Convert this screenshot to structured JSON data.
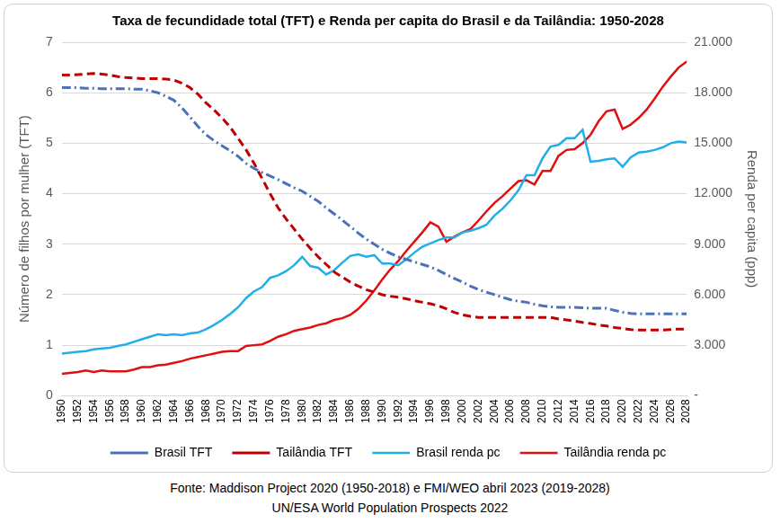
{
  "chart_data": {
    "type": "line",
    "title": "Taxa de fecundidade total (TFT) e Renda per capita do Brasil e da Tailândia: 1950-2028",
    "ylabel": "Número de filhos por mulher (TFT)",
    "y2label": "Renda per capita (ppp)",
    "annotations": [
      "Fonte: Maddison Project 2020 (1950-2018) e FMI/WEO abril 2023 (2019-2028)",
      "UN/ESA World Population Prospects 2022"
    ],
    "legend": "bottom",
    "grid": true,
    "x": [
      1950,
      1951,
      1952,
      1953,
      1954,
      1955,
      1956,
      1957,
      1958,
      1959,
      1960,
      1961,
      1962,
      1963,
      1964,
      1965,
      1966,
      1967,
      1968,
      1969,
      1970,
      1971,
      1972,
      1973,
      1974,
      1975,
      1976,
      1977,
      1978,
      1979,
      1980,
      1981,
      1982,
      1983,
      1984,
      1985,
      1986,
      1987,
      1988,
      1989,
      1990,
      1991,
      1992,
      1993,
      1994,
      1995,
      1996,
      1997,
      1998,
      1999,
      2000,
      2001,
      2002,
      2003,
      2004,
      2005,
      2006,
      2007,
      2008,
      2009,
      2010,
      2011,
      2012,
      2013,
      2014,
      2015,
      2016,
      2017,
      2018,
      2019,
      2020,
      2021,
      2022,
      2023,
      2024,
      2025,
      2026,
      2027,
      2028
    ],
    "xlim": [
      1950,
      2028
    ],
    "xticks": [
      1950,
      1952,
      1954,
      1956,
      1958,
      1960,
      1962,
      1964,
      1966,
      1968,
      1970,
      1972,
      1974,
      1976,
      1978,
      1980,
      1982,
      1984,
      1986,
      1988,
      1990,
      1992,
      1994,
      1996,
      1998,
      2000,
      2002,
      2004,
      2006,
      2008,
      2010,
      2012,
      2014,
      2016,
      2018,
      2020,
      2022,
      2024,
      2026,
      2028
    ],
    "ylim": [
      0,
      7
    ],
    "yticks": [
      0,
      1,
      2,
      3,
      4,
      5,
      6,
      7
    ],
    "y2lim": [
      0,
      21000
    ],
    "y2ticks": [
      {
        "value": 0,
        "label": "-"
      },
      {
        "value": 3000,
        "label": "3.000"
      },
      {
        "value": 6000,
        "label": "6.000"
      },
      {
        "value": 9000,
        "label": "9.000"
      },
      {
        "value": 12000,
        "label": "12.000"
      },
      {
        "value": 15000,
        "label": "15.000"
      },
      {
        "value": 18000,
        "label": "18.000"
      },
      {
        "value": 21000,
        "label": "21.000"
      }
    ],
    "series": [
      {
        "name": "Brasil TFT",
        "color": "#4a72b8",
        "line_style": "dashdot",
        "axis": "y",
        "values": [
          6.1,
          6.1,
          6.1,
          6.09,
          6.09,
          6.08,
          6.08,
          6.08,
          6.08,
          6.07,
          6.07,
          6.04,
          6.0,
          5.93,
          5.85,
          5.7,
          5.52,
          5.33,
          5.17,
          5.05,
          4.95,
          4.85,
          4.74,
          4.6,
          4.5,
          4.42,
          4.35,
          4.28,
          4.2,
          4.12,
          4.05,
          3.95,
          3.85,
          3.72,
          3.6,
          3.48,
          3.35,
          3.22,
          3.1,
          3.0,
          2.9,
          2.82,
          2.75,
          2.7,
          2.65,
          2.6,
          2.55,
          2.48,
          2.4,
          2.32,
          2.25,
          2.17,
          2.1,
          2.05,
          2.0,
          1.95,
          1.9,
          1.87,
          1.85,
          1.81,
          1.78,
          1.76,
          1.75,
          1.75,
          1.75,
          1.74,
          1.73,
          1.73,
          1.73,
          1.69,
          1.65,
          1.63,
          1.62,
          1.62,
          1.62,
          1.62,
          1.62,
          1.62,
          1.62
        ]
      },
      {
        "name": "Tailândia TFT",
        "color": "#c00000",
        "line_style": "dashed",
        "axis": "y",
        "values": [
          6.35,
          6.35,
          6.36,
          6.37,
          6.38,
          6.37,
          6.35,
          6.32,
          6.3,
          6.29,
          6.28,
          6.28,
          6.28,
          6.27,
          6.25,
          6.19,
          6.1,
          5.97,
          5.8,
          5.66,
          5.5,
          5.32,
          5.1,
          4.87,
          4.6,
          4.3,
          4.0,
          3.72,
          3.5,
          3.3,
          3.1,
          2.92,
          2.75,
          2.6,
          2.45,
          2.35,
          2.25,
          2.17,
          2.1,
          2.05,
          2.0,
          1.97,
          1.95,
          1.92,
          1.88,
          1.85,
          1.82,
          1.78,
          1.72,
          1.65,
          1.6,
          1.57,
          1.55,
          1.55,
          1.55,
          1.55,
          1.55,
          1.55,
          1.55,
          1.55,
          1.55,
          1.55,
          1.52,
          1.5,
          1.48,
          1.45,
          1.43,
          1.4,
          1.38,
          1.35,
          1.33,
          1.31,
          1.3,
          1.3,
          1.3,
          1.3,
          1.31,
          1.32,
          1.32
        ]
      },
      {
        "name": "Brasil renda pc",
        "color": "#22aee8",
        "line_style": "solid",
        "axis": "y2",
        "values": [
          2500,
          2550,
          2600,
          2650,
          2750,
          2800,
          2850,
          2950,
          3050,
          3200,
          3350,
          3500,
          3650,
          3600,
          3650,
          3600,
          3700,
          3750,
          3950,
          4200,
          4500,
          4850,
          5250,
          5800,
          6200,
          6450,
          7000,
          7150,
          7400,
          7750,
          8250,
          7700,
          7600,
          7200,
          7450,
          7900,
          8300,
          8400,
          8250,
          8350,
          7850,
          7850,
          7750,
          8100,
          8500,
          8850,
          9050,
          9250,
          9400,
          9400,
          9700,
          9800,
          9950,
          10150,
          10700,
          11100,
          11600,
          12200,
          13100,
          13100,
          14100,
          14800,
          14900,
          15300,
          15300,
          15800,
          13900,
          13950,
          14050,
          14100,
          13600,
          14150,
          14450,
          14500,
          14600,
          14750,
          15000,
          15100,
          15050
        ]
      },
      {
        "name": "Tailândia renda pc",
        "color": "#e01010",
        "line_style": "solid",
        "axis": "y2",
        "values": [
          1300,
          1350,
          1400,
          1500,
          1400,
          1500,
          1450,
          1450,
          1450,
          1550,
          1700,
          1700,
          1800,
          1850,
          1950,
          2050,
          2200,
          2300,
          2400,
          2500,
          2600,
          2650,
          2650,
          2950,
          3000,
          3050,
          3250,
          3500,
          3650,
          3850,
          3950,
          4050,
          4200,
          4300,
          4500,
          4600,
          4800,
          5150,
          5650,
          6250,
          6900,
          7500,
          8000,
          8600,
          9150,
          9700,
          10300,
          10050,
          9150,
          9450,
          9700,
          9900,
          10400,
          10950,
          11450,
          11850,
          12300,
          12750,
          12800,
          12550,
          13350,
          13350,
          14250,
          14600,
          14650,
          15000,
          15500,
          16300,
          16900,
          17000,
          15850,
          16100,
          16500,
          17000,
          17650,
          18350,
          18950,
          19500,
          19850
        ]
      }
    ]
  }
}
